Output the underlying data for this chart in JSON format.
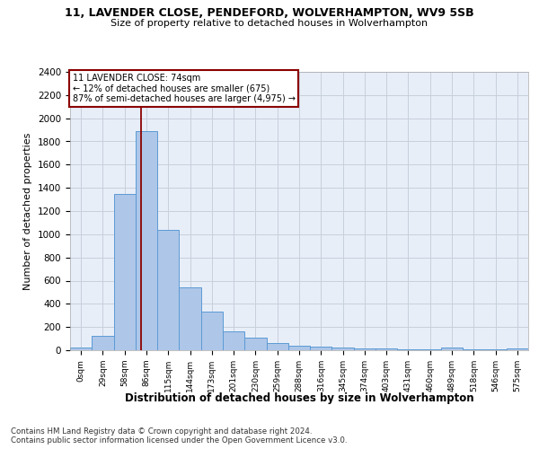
{
  "title1": "11, LAVENDER CLOSE, PENDEFORD, WOLVERHAMPTON, WV9 5SB",
  "title2": "Size of property relative to detached houses in Wolverhampton",
  "xlabel": "Distribution of detached houses by size in Wolverhampton",
  "ylabel": "Number of detached properties",
  "footer1": "Contains HM Land Registry data © Crown copyright and database right 2024.",
  "footer2": "Contains public sector information licensed under the Open Government Licence v3.0.",
  "bar_values": [
    20,
    125,
    1350,
    1890,
    1040,
    540,
    335,
    165,
    110,
    60,
    38,
    28,
    25,
    18,
    12,
    8,
    5,
    25,
    5,
    5,
    18
  ],
  "bar_labels": [
    "0sqm",
    "29sqm",
    "58sqm",
    "86sqm",
    "115sqm",
    "144sqm",
    "173sqm",
    "201sqm",
    "230sqm",
    "259sqm",
    "288sqm",
    "316sqm",
    "345sqm",
    "374sqm",
    "403sqm",
    "431sqm",
    "460sqm",
    "489sqm",
    "518sqm",
    "546sqm",
    "575sqm"
  ],
  "bar_color": "#aec6e8",
  "bar_edge_color": "#5b9bd5",
  "ylim": [
    0,
    2400
  ],
  "yticks": [
    0,
    200,
    400,
    600,
    800,
    1000,
    1200,
    1400,
    1600,
    1800,
    2000,
    2200,
    2400
  ],
  "vline_x": 2.74,
  "vline_color": "#8b0000",
  "annotation_text": "11 LAVENDER CLOSE: 74sqm\n← 12% of detached houses are smaller (675)\n87% of semi-detached houses are larger (4,975) →",
  "annotation_box_color": "#8b0000",
  "background_color": "#ffffff",
  "axes_bg_color": "#e8eef8",
  "grid_color": "#c8d0dc"
}
